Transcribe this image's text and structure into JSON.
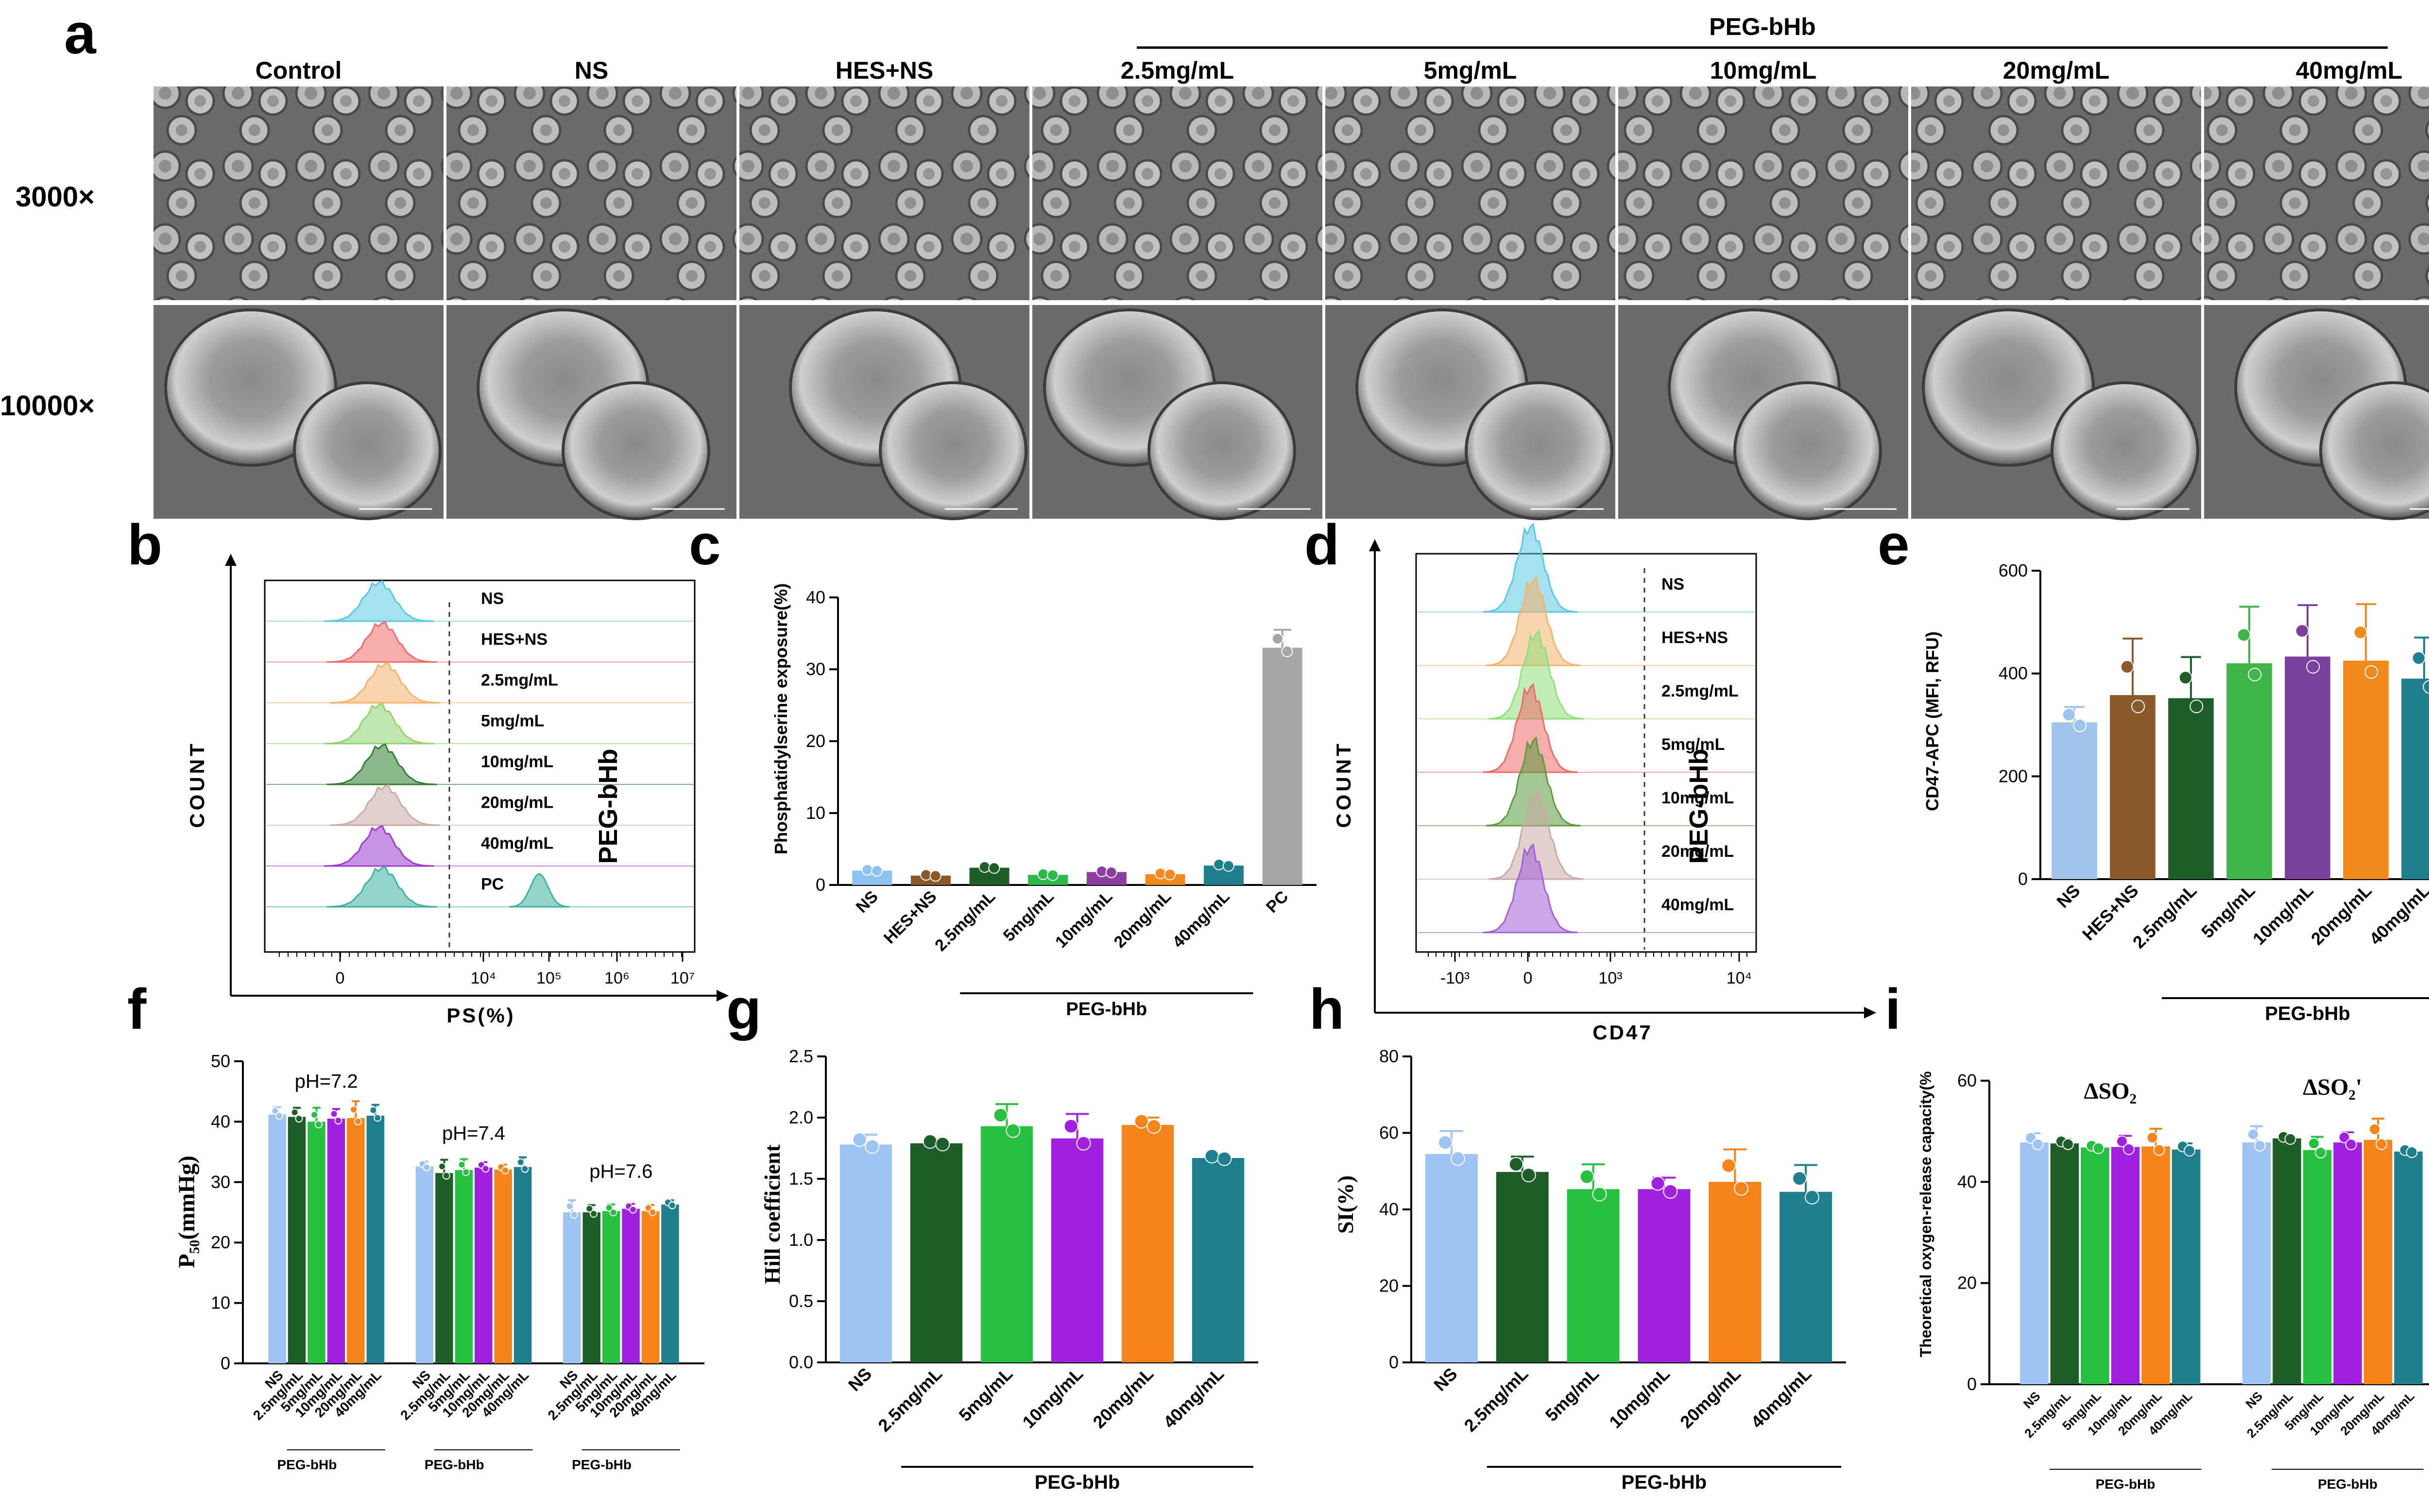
{
  "panels": {
    "a": {
      "letter": "a",
      "group_label": "PEG-bHb",
      "columns": [
        "Control",
        "NS",
        "HES+NS",
        "2.5mg/mL",
        "5mg/mL",
        "10mg/mL",
        "20mg/mL",
        "40mg/mL"
      ],
      "rows": [
        "3000×",
        "10000×"
      ]
    },
    "b": {
      "letter": "b",
      "ylabel": "COUNT",
      "xlabel": "PS(%)",
      "side_label": "PEG-bHb",
      "tracks": [
        {
          "label": "NS",
          "color": "#5bc8e0"
        },
        {
          "label": "HES+NS",
          "color": "#ef6a6a"
        },
        {
          "label": "2.5mg/mL",
          "color": "#f7b26a"
        },
        {
          "label": "5mg/mL",
          "color": "#8fd36b"
        },
        {
          "label": "10mg/mL",
          "color": "#2e7d32"
        },
        {
          "label": "20mg/mL",
          "color": "#c9a9a6"
        },
        {
          "label": "40mg/mL",
          "color": "#9c3bd0"
        },
        {
          "label": "PC",
          "color": "#3bb3a0"
        }
      ],
      "xticks": [
        "0",
        "10⁴",
        "10⁵",
        "10⁶",
        "10⁷"
      ]
    },
    "c": {
      "letter": "c",
      "ylabel": "Phosphatidylserine exposure(%)",
      "group_label": "PEG-bHb"
    },
    "d": {
      "letter": "d",
      "ylabel": "COUNT",
      "xlabel": "CD47",
      "side_label": "PEG-bHb",
      "tracks": [
        {
          "label": "NS",
          "color": "#5bc8e0"
        },
        {
          "label": "HES+NS",
          "color": "#f7b26a"
        },
        {
          "label": "2.5mg/mL",
          "color": "#8fe07a"
        },
        {
          "label": "5mg/mL",
          "color": "#ef6a6a"
        },
        {
          "label": "10mg/mL",
          "color": "#5a9a3a"
        },
        {
          "label": "20mg/mL",
          "color": "#c9a9a6"
        },
        {
          "label": "40mg/mL",
          "color": "#a25fd6"
        }
      ],
      "xticks": [
        "-10³",
        "0",
        "10³",
        "10⁴"
      ]
    },
    "e": {
      "letter": "e",
      "ylabel": "CD47-APC (MFI, RFU)",
      "group_label": "PEG-bHb"
    },
    "f": {
      "letter": "f",
      "ylabel": "P₅₀(mmHg)",
      "group_label": "PEG-bHb"
    },
    "g": {
      "letter": "g",
      "ylabel": "Hill coefficient",
      "group_label": "PEG-bHb"
    },
    "h": {
      "letter": "h",
      "ylabel": "SI(%)",
      "group_label": "PEG-bHb"
    },
    "i": {
      "letter": "i",
      "ylabel": "Theoretical oxygen-release capacity(%",
      "group_label": "PEG-bHb"
    }
  },
  "chart_data": [
    {
      "id": "c",
      "type": "bar",
      "categories": [
        "NS",
        "HES+NS",
        "2.5mg/mL",
        "5mg/mL",
        "10mg/mL",
        "20mg/mL",
        "40mg/mL",
        "PC"
      ],
      "values": [
        2.0,
        1.3,
        2.4,
        1.4,
        1.8,
        1.5,
        2.7,
        33.0
      ],
      "errors": [
        0.2,
        0.2,
        0.2,
        0.2,
        0.2,
        0.2,
        0.3,
        2.5
      ],
      "colors": [
        "#8ec2f0",
        "#8a5a2b",
        "#1e5e28",
        "#2db84a",
        "#8c3fa0",
        "#f08a1c",
        "#1f7f8e",
        "#a6a6a6"
      ],
      "ylabel": "Phosphatidylserine exposure(%)",
      "ylim": [
        0,
        40
      ],
      "yticks": [
        0,
        10,
        20,
        30,
        40
      ]
    },
    {
      "id": "e",
      "type": "bar",
      "categories": [
        "NS",
        "HES+NS",
        "2.5mg/mL",
        "5mg/mL",
        "10mg/mL",
        "20mg/mL",
        "40mg/mL"
      ],
      "values": [
        305,
        358,
        352,
        420,
        433,
        425,
        390
      ],
      "errors": [
        30,
        110,
        80,
        110,
        100,
        110,
        80
      ],
      "colors": [
        "#9ec4ea",
        "#8a5a2b",
        "#1e5e28",
        "#3fb54a",
        "#7b3f9e",
        "#f08a1c",
        "#1f7f8e"
      ],
      "ylabel": "CD47-APC (MFI, RFU)",
      "ylim": [
        0,
        600
      ],
      "yticks": [
        0,
        200,
        400,
        600
      ]
    },
    {
      "id": "f",
      "type": "bar",
      "groups": [
        "pH=7.2",
        "pH=7.4",
        "pH=7.6"
      ],
      "categories": [
        "NS",
        "2.5mg/mL",
        "5mg/mL",
        "10mg/mL",
        "20mg/mL",
        "40mg/mL"
      ],
      "series": [
        {
          "name": "pH=7.2",
          "values": [
            41.2,
            40.8,
            40.0,
            40.5,
            40.6,
            41.0
          ],
          "errors": [
            1.2,
            1.5,
            2.3,
            1.6,
            2.8,
            1.8
          ]
        },
        {
          "name": "pH=7.4",
          "values": [
            32.6,
            31.5,
            32.0,
            32.4,
            32.1,
            32.5
          ],
          "errors": [
            0.8,
            2.2,
            1.8,
            0.9,
            0.8,
            1.6
          ]
        },
        {
          "name": "pH=7.6",
          "values": [
            25.0,
            25.0,
            25.2,
            25.6,
            25.2,
            26.3
          ],
          "errors": [
            2.0,
            1.2,
            1.1,
            0.8,
            1.0,
            0.7
          ]
        }
      ],
      "colors": [
        "#9ec4f4",
        "#1e5e28",
        "#28c041",
        "#a020e0",
        "#f5841b",
        "#1f7f8e"
      ],
      "ylabel": "P₅₀(mmHg)",
      "ylim": [
        0,
        50
      ],
      "yticks": [
        0,
        10,
        20,
        30,
        40,
        50
      ]
    },
    {
      "id": "g",
      "type": "bar",
      "categories": [
        "NS",
        "2.5mg/mL",
        "5mg/mL",
        "10mg/mL",
        "20mg/mL",
        "40mg/mL"
      ],
      "values": [
        1.78,
        1.79,
        1.93,
        1.83,
        1.94,
        1.67
      ],
      "errors": [
        0.08,
        0.03,
        0.18,
        0.2,
        0.06,
        0.03
      ],
      "colors": [
        "#9ec4f4",
        "#1e5e28",
        "#28c041",
        "#a020e0",
        "#f5841b",
        "#1f7f8e"
      ],
      "ylabel": "Hill coefficient",
      "ylim": [
        0,
        2.5
      ],
      "yticks": [
        0.0,
        0.5,
        1.0,
        1.5,
        2.0,
        2.5
      ]
    },
    {
      "id": "h",
      "type": "bar",
      "categories": [
        "NS",
        "2.5mg/mL",
        "5mg/mL",
        "10mg/mL",
        "20mg/mL",
        "40mg/mL"
      ],
      "values": [
        54.5,
        49.8,
        45.3,
        45.3,
        47.2,
        44.6
      ],
      "errors": [
        6.0,
        4.0,
        6.5,
        3.0,
        8.5,
        7.0
      ],
      "colors": [
        "#9ec4f4",
        "#1e5e28",
        "#28c041",
        "#a020e0",
        "#f5841b",
        "#1f7f8e"
      ],
      "ylabel": "SI(%)",
      "ylim": [
        0,
        80
      ],
      "yticks": [
        0,
        20,
        40,
        60,
        80
      ]
    },
    {
      "id": "i",
      "type": "bar",
      "groups": [
        "ΔSO₂",
        "ΔSO₂'"
      ],
      "categories": [
        "NS",
        "2.5mg/mL",
        "5mg/mL",
        "10mg/mL",
        "20mg/mL",
        "40mg/mL"
      ],
      "series": [
        {
          "name": "ΔSO₂",
          "values": [
            47.8,
            47.6,
            46.8,
            46.9,
            47.0,
            46.4
          ],
          "errors": [
            1.8,
            0.8,
            0.7,
            2.2,
            3.5,
            1.2
          ]
        },
        {
          "name": "ΔSO₂'",
          "values": [
            47.8,
            48.6,
            46.3,
            47.8,
            48.3,
            46.0
          ],
          "errors": [
            3.2,
            0.6,
            2.6,
            2.0,
            4.2,
            0.6
          ]
        }
      ],
      "colors": [
        "#9ec4f4",
        "#1e5e28",
        "#28c041",
        "#a020e0",
        "#f5841b",
        "#1f7f8e"
      ],
      "ylabel": "Theoretical oxygen-release capacity(%",
      "ylim": [
        0,
        60
      ],
      "yticks": [
        0,
        20,
        40,
        60
      ]
    }
  ]
}
